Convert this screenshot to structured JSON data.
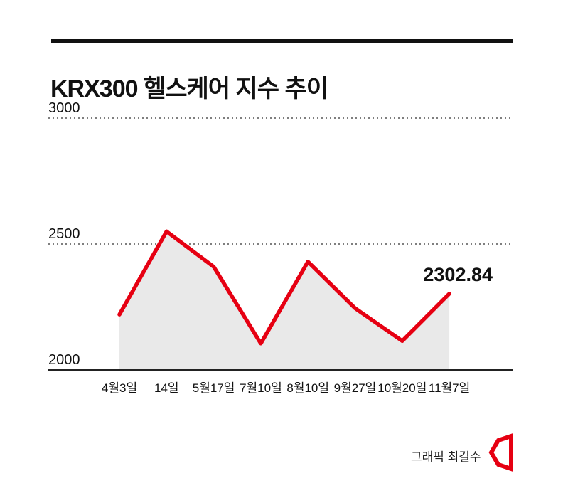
{
  "page": {
    "title": "KRX300 헬스케어 지수 추이",
    "credit": "그래픽 최길수",
    "logo_color": "#e60012"
  },
  "chart_data": {
    "type": "line",
    "title": "KRX300 헬스케어 지수 추이",
    "categories": [
      "4월3일",
      "14일",
      "5월17일",
      "7월10일",
      "8월10일",
      "9월27일",
      "10월20일",
      "11월7일"
    ],
    "values": [
      2220,
      2550,
      2410,
      2105,
      2430,
      2245,
      2115,
      2302.84
    ],
    "xlabel": "",
    "ylabel": "",
    "ylim": [
      2000,
      3000
    ],
    "yticks": [
      3000,
      2500,
      2000
    ],
    "ytick_labels": [
      "3000",
      "2500",
      "2000"
    ],
    "last_value_label": "2302.84",
    "line_color": "#e60012",
    "fill_color": "#e9e9e9",
    "grid": "dotted horizontal gridlines at 2500 and 3000, solid baseline axis at 2000",
    "legend": "none"
  }
}
